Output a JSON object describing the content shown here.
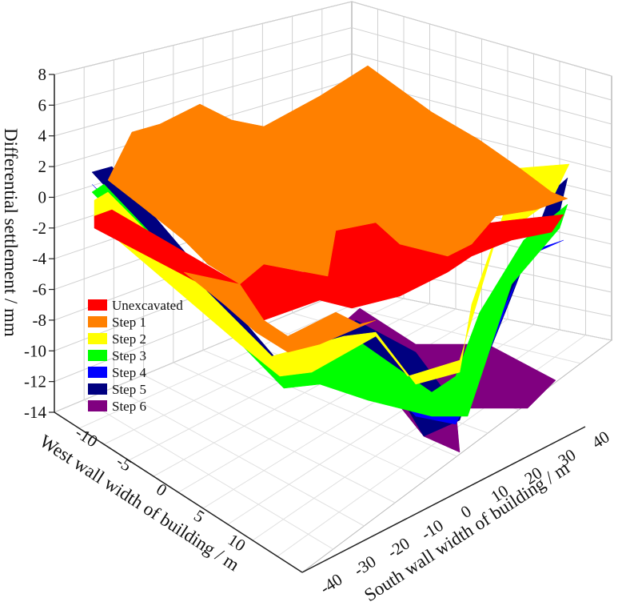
{
  "chart_data": {
    "type": "surface-3d",
    "zlabel": "Differential settlement / mm",
    "xlabel": "West wall width of building / m",
    "ylabel": "South wall width of building / m",
    "z_ticks": [
      "8",
      "6",
      "4",
      "2",
      "0",
      "-2",
      "-4",
      "-6",
      "-8",
      "-10",
      "-12",
      "-14"
    ],
    "x_ticks": [
      "-10",
      "-5",
      "0",
      "5",
      "10"
    ],
    "y_ticks": [
      "-40",
      "-30",
      "-20",
      "-10",
      "0",
      "10",
      "20",
      "30",
      "40"
    ],
    "zlim": [
      -14,
      8
    ],
    "xlim": [
      -10,
      12
    ],
    "ylim": [
      -40,
      40
    ],
    "grid": true,
    "legend_position": "left-middle",
    "series": [
      {
        "name": "Unexcavated",
        "color": "#ff0000",
        "approx_range_mm": [
          -8,
          2
        ]
      },
      {
        "name": "Step 1",
        "color": "#ff8000",
        "approx_range_mm": [
          -7,
          8
        ]
      },
      {
        "name": "Step 2",
        "color": "#ffff00",
        "approx_range_mm": [
          -10,
          3
        ]
      },
      {
        "name": "Step 3",
        "color": "#00ff00",
        "approx_range_mm": [
          -13,
          1
        ]
      },
      {
        "name": "Step 4",
        "color": "#0000ff",
        "approx_range_mm": [
          -13,
          1
        ]
      },
      {
        "name": "Step 5",
        "color": "#000080",
        "approx_range_mm": [
          -14,
          2
        ]
      },
      {
        "name": "Step 6",
        "color": "#800080",
        "approx_range_mm": [
          -14,
          -8
        ]
      }
    ]
  }
}
